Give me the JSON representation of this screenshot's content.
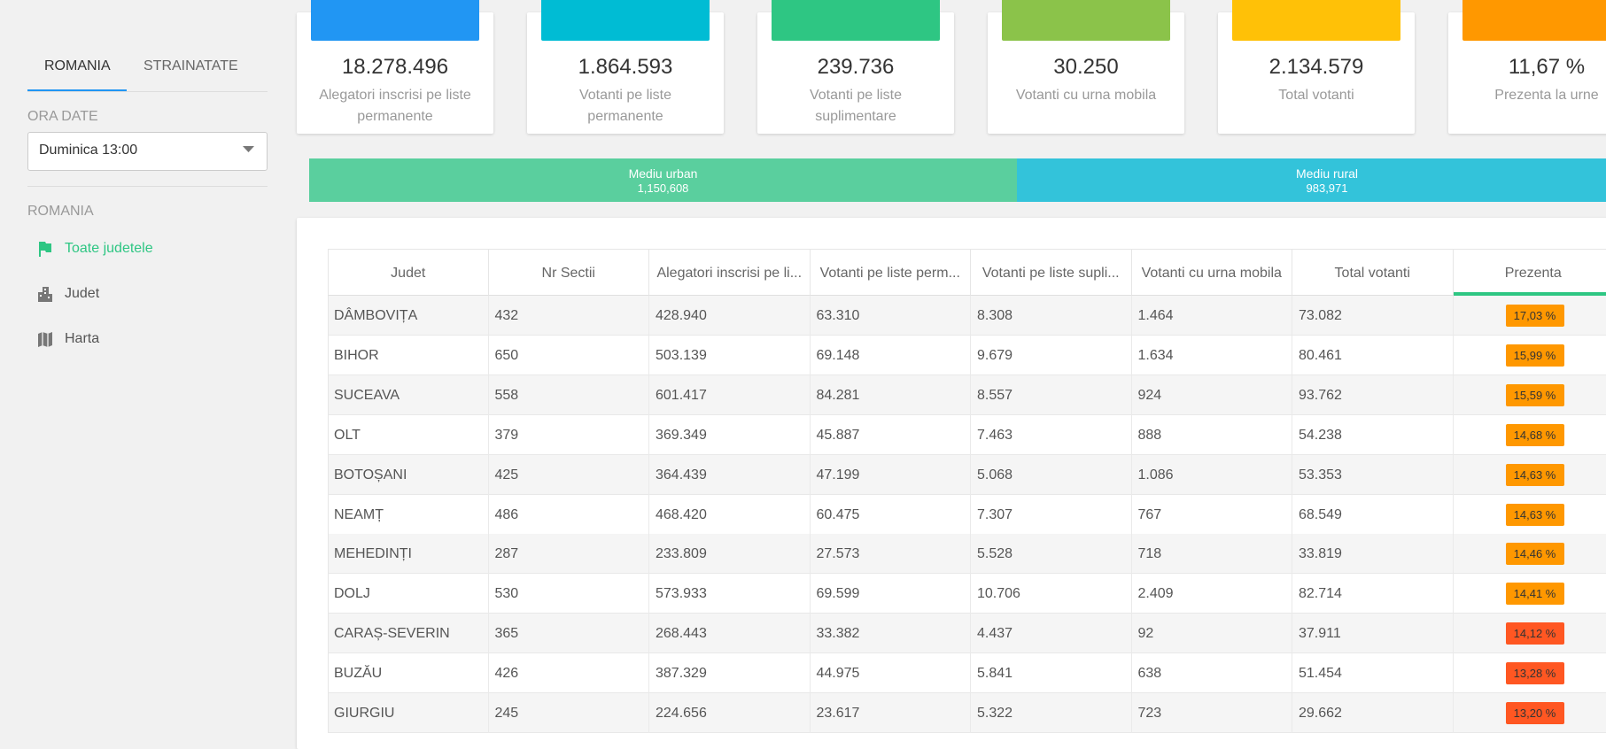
{
  "sidebar": {
    "tabs": [
      "ROMANIA",
      "STRAINATATE"
    ],
    "ora_date_label": "ORA DATE",
    "ora_date_value": "Duminica 13:00",
    "section_label": "ROMANIA",
    "menu": [
      "Toate judetele",
      "Judet",
      "Harta"
    ]
  },
  "cards": [
    {
      "value": "18.278.496",
      "label": "Alegatori inscrisi pe liste permanente",
      "color": "#2196f3"
    },
    {
      "value": "1.864.593",
      "label": "Votanti pe liste permanente",
      "color": "#00bcd4"
    },
    {
      "value": "239.736",
      "label": "Votanti pe liste suplimentare",
      "color": "#2ec683"
    },
    {
      "value": "30.250",
      "label": "Votanti cu urna mobila",
      "color": "#8bc34a"
    },
    {
      "value": "2.134.579",
      "label": "Total votanti",
      "color": "#ffc107"
    },
    {
      "value": "11,67 %",
      "label": "Prezenta la urne",
      "color": "#ff9800"
    }
  ],
  "environment": [
    {
      "name": "Mediu urban",
      "value": "1,150,608",
      "color": "#5acf9e"
    },
    {
      "name": "Mediu rural",
      "value": "983,971",
      "color": "#33c3da"
    }
  ],
  "table": {
    "headers": [
      "Judet",
      "Nr Sectii",
      "Alegatori inscrisi pe li...",
      "Votanti pe liste perm...",
      "Votanti pe liste supli...",
      "Votanti cu urna mobila",
      "Total votanti",
      "Prezenta"
    ],
    "rows": [
      [
        "DÂMBOVIȚA",
        "432",
        "428.940",
        "63.310",
        "8.308",
        "1.464",
        "73.082",
        "17,03 %"
      ],
      [
        "BIHOR",
        "650",
        "503.139",
        "69.148",
        "9.679",
        "1.634",
        "80.461",
        "15,99 %"
      ],
      [
        "SUCEAVA",
        "558",
        "601.417",
        "84.281",
        "8.557",
        "924",
        "93.762",
        "15,59 %"
      ],
      [
        "OLT",
        "379",
        "369.349",
        "45.887",
        "7.463",
        "888",
        "54.238",
        "14,68 %"
      ],
      [
        "BOTOȘANI",
        "425",
        "364.439",
        "47.199",
        "5.068",
        "1.086",
        "53.353",
        "14,63 %"
      ],
      [
        "NEAMȚ",
        "486",
        "468.420",
        "60.475",
        "7.307",
        "767",
        "68.549",
        "14,63 %"
      ],
      [
        "MEHEDINȚI",
        "287",
        "233.809",
        "27.573",
        "5.528",
        "718",
        "33.819",
        "14,46 %"
      ],
      [
        "DOLJ",
        "530",
        "573.933",
        "69.599",
        "10.706",
        "2.409",
        "82.714",
        "14,41 %"
      ],
      [
        "CARAȘ-SEVERIN",
        "365",
        "268.443",
        "33.382",
        "4.437",
        "92",
        "37.911",
        "14,12 %"
      ],
      [
        "BUZĂU",
        "426",
        "387.329",
        "44.975",
        "5.841",
        "638",
        "51.454",
        "13,28 %"
      ],
      [
        "GIURGIU",
        "245",
        "224.656",
        "23.617",
        "5.322",
        "723",
        "29.662",
        "13,20 %"
      ]
    ],
    "badge_colors": [
      "#ff9800",
      "#ff9800",
      "#ff9800",
      "#ff9800",
      "#ff9800",
      "#ff9800",
      "#ff9800",
      "#ff9800",
      "#ff5722",
      "#ff5722",
      "#ff5722"
    ]
  }
}
